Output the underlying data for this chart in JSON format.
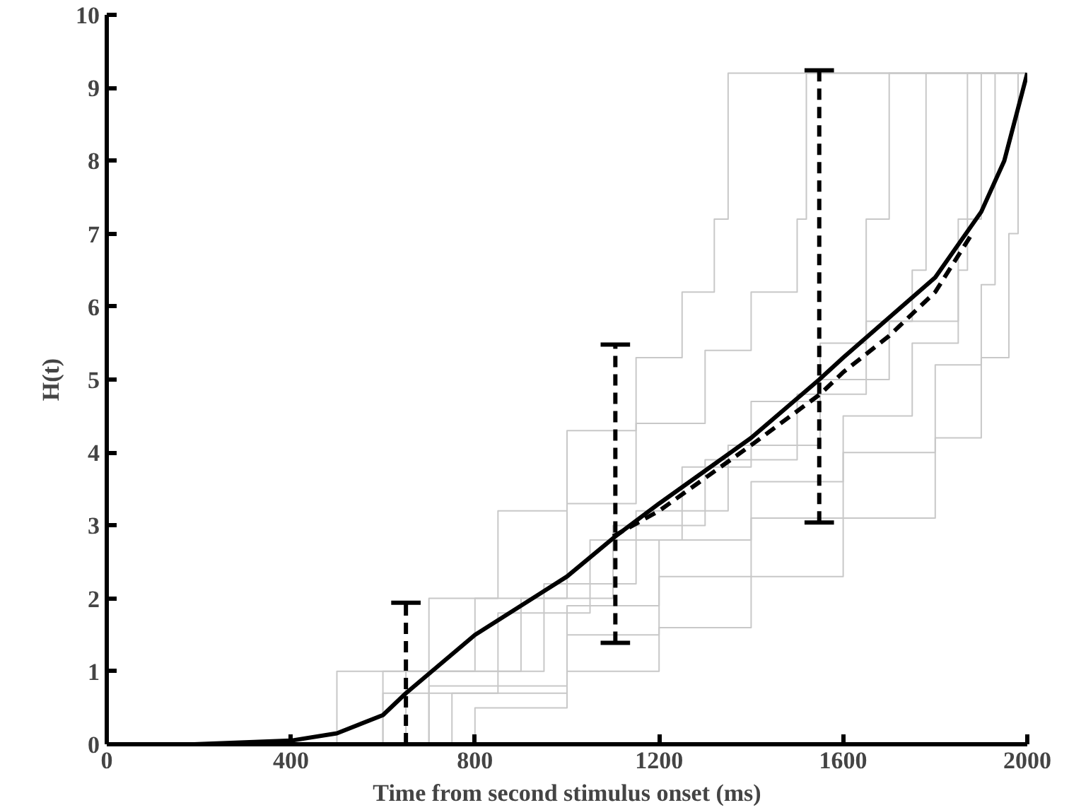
{
  "chart_data": {
    "type": "line",
    "xlabel": "Time from second stimulus onset (ms)",
    "ylabel": "H(t)",
    "xlim": [
      0,
      2000
    ],
    "ylim": [
      0,
      10
    ],
    "xticks": [
      0,
      400,
      800,
      1200,
      1600,
      2000
    ],
    "yticks": [
      0,
      1,
      2,
      3,
      4,
      5,
      6,
      7,
      8,
      9,
      10
    ],
    "grid": false,
    "series": [
      {
        "type": "step",
        "color": "#c8c8c8",
        "x": [
          250,
          500,
          700,
          850,
          1000,
          1150,
          1250,
          1320,
          1350,
          2000
        ],
        "values": [
          0,
          1.0,
          2.0,
          3.2,
          4.3,
          5.3,
          6.2,
          7.2,
          9.2,
          9.2
        ]
      },
      {
        "type": "step",
        "color": "#c8c8c8",
        "x": [
          300,
          600,
          800,
          1000,
          1150,
          1300,
          1400,
          1500,
          1520,
          2000
        ],
        "values": [
          0,
          1.0,
          2.0,
          3.3,
          4.4,
          5.4,
          6.2,
          7.2,
          9.2,
          9.2
        ]
      },
      {
        "type": "step",
        "color": "#c8c8c8",
        "x": [
          350,
          650,
          900,
          1100,
          1300,
          1500,
          1650,
          1750,
          1780,
          2000
        ],
        "values": [
          0,
          1.0,
          2.0,
          3.0,
          3.9,
          4.8,
          5.8,
          6.5,
          9.2,
          9.2
        ]
      },
      {
        "type": "step",
        "color": "#c8c8c8",
        "x": [
          400,
          700,
          1000,
          1200,
          1400,
          1600,
          1750,
          1850,
          1870,
          2000
        ],
        "values": [
          0,
          0.8,
          1.9,
          2.8,
          3.6,
          4.5,
          5.5,
          6.5,
          9.2,
          9.2
        ]
      },
      {
        "type": "step",
        "color": "#c8c8c8",
        "x": [
          450,
          750,
          1000,
          1200,
          1400,
          1600,
          1800,
          1900,
          1930,
          2000
        ],
        "values": [
          0,
          0.7,
          1.5,
          2.3,
          3.1,
          4.0,
          5.2,
          6.3,
          9.2,
          9.2
        ]
      },
      {
        "type": "step",
        "color": "#c8c8c8",
        "x": [
          500,
          800,
          1000,
          1200,
          1400,
          1600,
          1800,
          1900,
          1960,
          1980,
          2000
        ],
        "values": [
          0,
          0.5,
          1.0,
          1.6,
          2.3,
          3.1,
          4.2,
          5.3,
          7.0,
          9.2,
          9.2
        ]
      },
      {
        "type": "step",
        "color": "#c8c8c8",
        "x": [
          350,
          600,
          850,
          1050,
          1250,
          1400,
          1550,
          1650,
          1700,
          2000
        ],
        "values": [
          0,
          0.7,
          1.8,
          2.8,
          3.8,
          4.7,
          5.5,
          7.2,
          9.2,
          9.2
        ]
      },
      {
        "type": "step",
        "color": "#c8c8c8",
        "x": [
          400,
          700,
          950,
          1150,
          1350,
          1550,
          1700,
          1850,
          1900,
          2000
        ],
        "values": [
          0,
          1.0,
          2.2,
          3.2,
          4.1,
          5.0,
          5.8,
          7.2,
          9.2,
          9.2
        ]
      },
      {
        "color": "#000000",
        "line_style": "solid",
        "x": [
          190,
          400,
          500,
          600,
          650,
          800,
          1000,
          1105,
          1200,
          1400,
          1548,
          1600,
          1700,
          1800,
          1900,
          1950,
          2000
        ],
        "values": [
          0,
          0.05,
          0.15,
          0.4,
          0.7,
          1.5,
          2.3,
          2.85,
          3.3,
          4.2,
          5.0,
          5.3,
          5.85,
          6.4,
          7.3,
          8.0,
          9.2
        ],
        "errors": [
          null,
          null,
          null,
          null,
          [
            0,
            1.94
          ],
          null,
          null,
          [
            1.39,
            5.48
          ],
          null,
          null,
          [
            3.04,
            9.24
          ],
          null,
          null,
          null,
          null,
          null,
          null
        ]
      },
      {
        "type": "line",
        "color": "#000000",
        "line_style": "dashed",
        "x": [
          1100,
          1200,
          1400,
          1550,
          1600,
          1700,
          1800,
          1880
        ],
        "values": [
          2.85,
          3.2,
          4.1,
          4.8,
          5.1,
          5.6,
          6.2,
          7.0
        ]
      }
    ]
  }
}
